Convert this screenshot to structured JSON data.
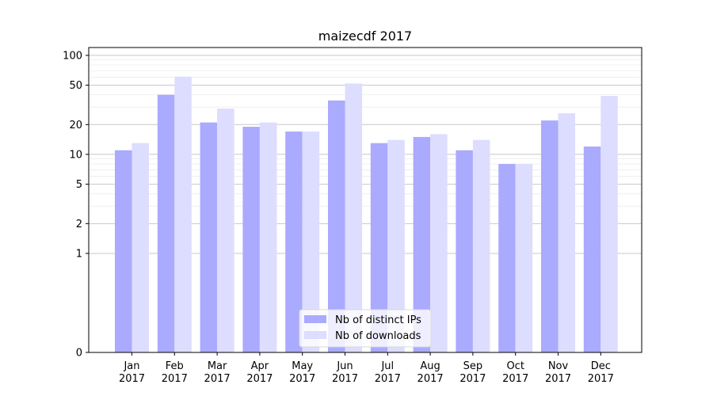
{
  "chart_data": {
    "type": "bar",
    "title": "maizecdf 2017",
    "xlabel": "",
    "ylabel": "",
    "yscale": "symlog",
    "ylim": [
      0,
      120
    ],
    "yticks": [
      0,
      1,
      2,
      5,
      10,
      20,
      50,
      100
    ],
    "grid": true,
    "legend_position": "bottom-center",
    "categories": [
      [
        "Jan",
        "2017"
      ],
      [
        "Feb",
        "2017"
      ],
      [
        "Mar",
        "2017"
      ],
      [
        "Apr",
        "2017"
      ],
      [
        "May",
        "2017"
      ],
      [
        "Jun",
        "2017"
      ],
      [
        "Jul",
        "2017"
      ],
      [
        "Aug",
        "2017"
      ],
      [
        "Sep",
        "2017"
      ],
      [
        "Oct",
        "2017"
      ],
      [
        "Nov",
        "2017"
      ],
      [
        "Dec",
        "2017"
      ]
    ],
    "series": [
      {
        "name": "Nb of distinct IPs",
        "color": "#aaaaff",
        "values": [
          11,
          40,
          21,
          19,
          17,
          35,
          13,
          15,
          11,
          8,
          22,
          12
        ]
      },
      {
        "name": "Nb of downloads",
        "color": "#ddddff",
        "values": [
          13,
          61,
          29,
          21,
          17,
          52,
          14,
          16,
          14,
          8,
          26,
          39
        ]
      }
    ]
  }
}
